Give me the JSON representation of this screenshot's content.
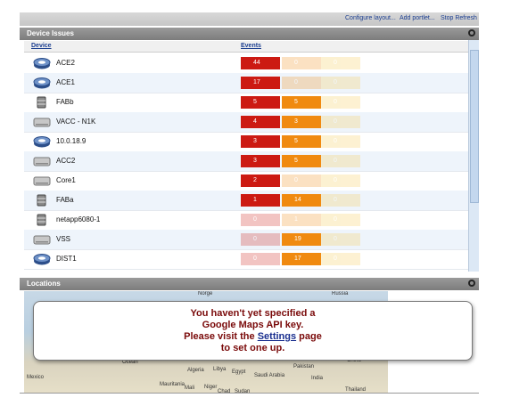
{
  "toolbar": {
    "links": [
      "Configure layout...",
      "Add portlet...",
      "Stop Refresh"
    ]
  },
  "device_issues": {
    "title": "Device Issues",
    "columns": [
      "Device",
      "Events"
    ],
    "rows": [
      {
        "name": "ACE2",
        "icon": "router",
        "events": [
          44,
          0,
          0
        ],
        "faded": [
          false,
          true,
          true
        ]
      },
      {
        "name": "ACE1",
        "icon": "router",
        "events": [
          17,
          0,
          0
        ],
        "faded": [
          false,
          true,
          true
        ]
      },
      {
        "name": "FABb",
        "icon": "storage",
        "events": [
          5,
          5,
          0
        ],
        "faded": [
          false,
          false,
          true
        ]
      },
      {
        "name": "VACC - N1K",
        "icon": "server",
        "events": [
          4,
          3,
          0
        ],
        "faded": [
          false,
          false,
          true
        ]
      },
      {
        "name": "10.0.18.9",
        "icon": "router",
        "events": [
          3,
          5,
          0
        ],
        "faded": [
          false,
          false,
          true
        ]
      },
      {
        "name": "ACC2",
        "icon": "server",
        "events": [
          3,
          5,
          0
        ],
        "faded": [
          false,
          false,
          true
        ]
      },
      {
        "name": "Core1",
        "icon": "server",
        "events": [
          2,
          0,
          0
        ],
        "faded": [
          false,
          true,
          true
        ]
      },
      {
        "name": "FABa",
        "icon": "storage",
        "events": [
          1,
          14,
          0
        ],
        "faded": [
          false,
          false,
          true
        ]
      },
      {
        "name": "netapp6080-1",
        "icon": "storage",
        "events": [
          0,
          1,
          0
        ],
        "faded": [
          true,
          true,
          true
        ]
      },
      {
        "name": "VSS",
        "icon": "server",
        "events": [
          0,
          19,
          0
        ],
        "faded": [
          true,
          false,
          true
        ]
      },
      {
        "name": "DIST1",
        "icon": "router",
        "events": [
          0,
          17,
          0
        ],
        "faded": [
          true,
          false,
          true
        ]
      }
    ]
  },
  "locations": {
    "title": "Locations",
    "map_labels": [
      "Norge",
      "Russia",
      "Ocean",
      "Algeria",
      "Libya",
      "Egypt",
      "Saudi Arabia",
      "Pakistan",
      "India",
      "China",
      "Mexico",
      "Mauritania",
      "Mali",
      "Niger",
      "Chad",
      "Sudan",
      "Thailand"
    ],
    "message": {
      "line1": "You haven't yet specified a",
      "line2": "Google Maps API key.",
      "line3_before": "Please visit the",
      "link": "Settings",
      "line3_after": "page",
      "line4": "to set one up."
    }
  }
}
